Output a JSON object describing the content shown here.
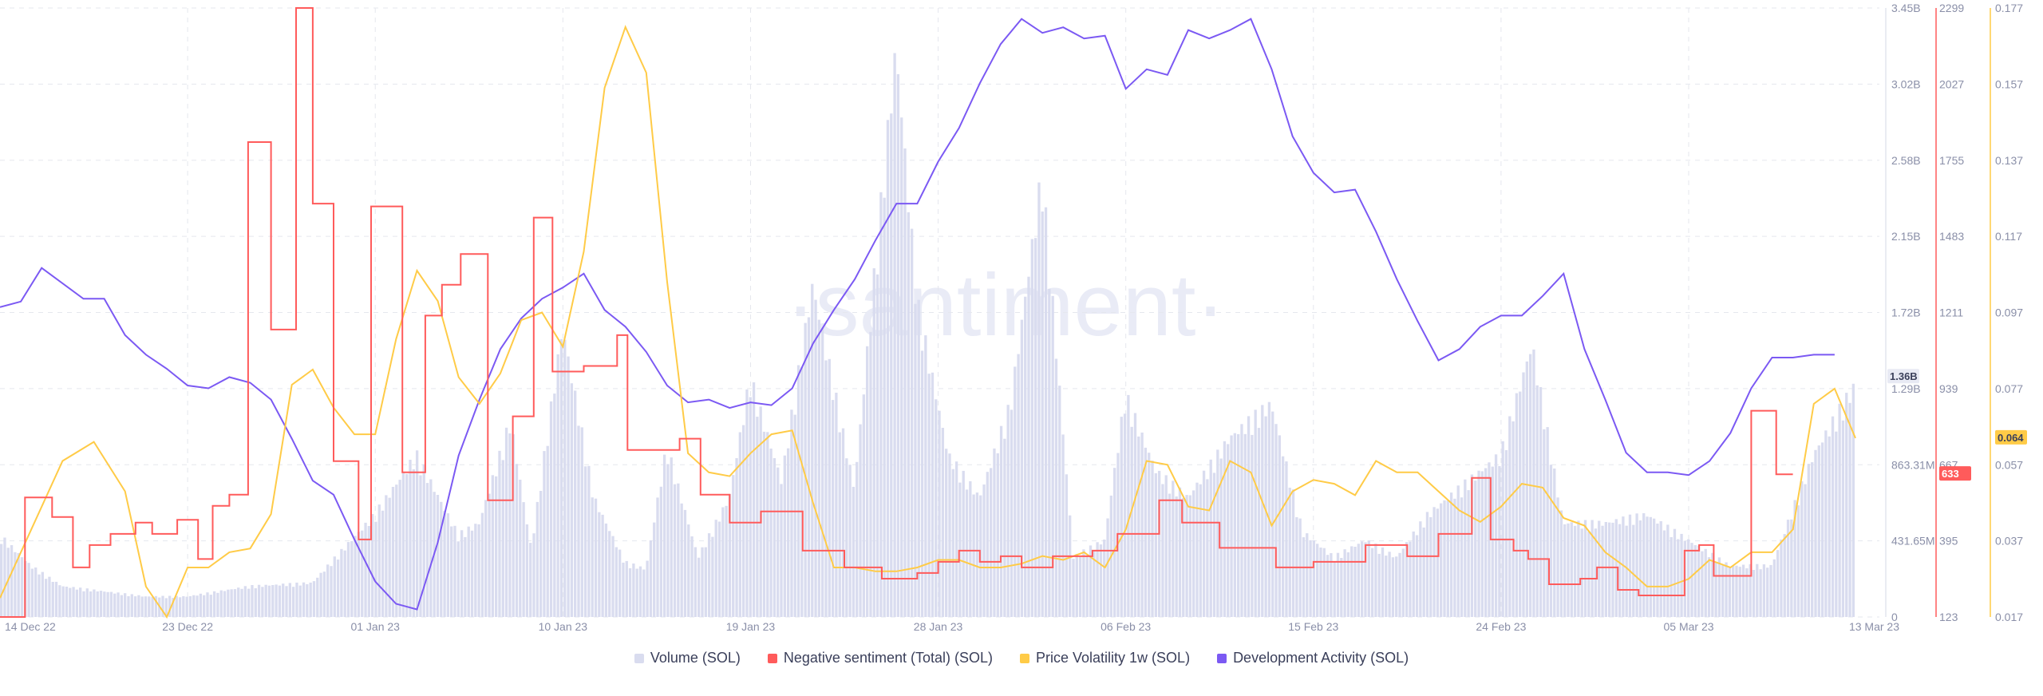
{
  "watermark": "·santiment·",
  "colors": {
    "volume": "#d9dcef",
    "negative": "#ff5b5b",
    "volatility": "#ffcb47",
    "dev": "#7b59f3",
    "grid": "#e5e7ee",
    "text": "#8a8fa8"
  },
  "chart_data": {
    "type": "area",
    "x_range": [
      "2022-12-14",
      "2023-03-13"
    ],
    "x_ticks": [
      "14 Dec 22",
      "23 Dec 22",
      "01 Jan 23",
      "10 Jan 23",
      "19 Jan 23",
      "28 Jan 23",
      "06 Feb 23",
      "15 Feb 23",
      "24 Feb 23",
      "05 Mar 23",
      "13 Mar 23"
    ],
    "axes": {
      "volume": {
        "ticks": [
          "3.45B",
          "3.02B",
          "2.58B",
          "2.15B",
          "1.72B",
          "1.29B",
          "863.31M",
          "431.65M",
          "0"
        ],
        "range": [
          0,
          3.45
        ],
        "unit": "B"
      },
      "negative": {
        "ticks": [
          "2299",
          "2027",
          "1755",
          "1483",
          "1211",
          "939",
          "667",
          "395",
          "123"
        ],
        "range": [
          123,
          2299
        ]
      },
      "volatility": {
        "ticks": [
          "0.177",
          "0.157",
          "0.137",
          "0.117",
          "0.097",
          "0.077",
          "0.057",
          "0.037",
          "0.017"
        ],
        "range": [
          0.017,
          0.177
        ]
      }
    },
    "current_labels": {
      "volume": "1.36B",
      "negative": "633",
      "volatility": "0.064"
    },
    "current_values": {
      "volume": 1.36,
      "negative": 633,
      "volatility": 0.064
    },
    "series": [
      {
        "name": "Volume (SOL)",
        "axis": "volume",
        "kind": "bars",
        "x": [
          0,
          1.5,
          3,
          5,
          7,
          9,
          12,
          15,
          18,
          20,
          22,
          23,
          24.5,
          25.5,
          27,
          28.5,
          30,
          31,
          32,
          33.5,
          35,
          36,
          37.5,
          39,
          41,
          43,
          44,
          45.5,
          47,
          48.5,
          50,
          51.5,
          53,
          54,
          55.5,
          57,
          59,
          61,
          62.5,
          64,
          65.5,
          67,
          68.5,
          70,
          72,
          73.5,
          75,
          77,
          79,
          81,
          83,
          85,
          87,
          89
        ],
        "values": [
          0.48,
          0.3,
          0.18,
          0.15,
          0.12,
          0.12,
          0.18,
          0.2,
          0.6,
          0.95,
          0.48,
          0.55,
          1.15,
          0.4,
          1.7,
          0.7,
          0.32,
          0.28,
          1.0,
          0.35,
          0.7,
          1.4,
          0.8,
          1.95,
          0.75,
          3.35,
          1.85,
          0.95,
          0.7,
          1.25,
          2.6,
          0.35,
          0.45,
          1.3,
          0.85,
          0.7,
          1.05,
          1.25,
          0.5,
          0.35,
          0.45,
          0.35,
          0.6,
          0.75,
          0.95,
          1.6,
          0.55,
          0.55,
          0.6,
          0.45,
          0.3,
          0.3,
          0.95,
          1.36
        ]
      },
      {
        "name": "Negative sentiment (Total) (SOL)",
        "axis": "negative",
        "kind": "step",
        "x": [
          0,
          1.2,
          2.5,
          3.5,
          4.3,
          5.3,
          6.5,
          7.3,
          8.5,
          9.5,
          10.2,
          11,
          11.9,
          13,
          14.2,
          15,
          16,
          17.2,
          17.8,
          19.3,
          20.4,
          21.2,
          22.1,
          23.4,
          24.6,
          25.6,
          26.5,
          28,
          29.6,
          30.1,
          32.6,
          33.6,
          35,
          36.5,
          38.5,
          40.5,
          42.3,
          44,
          45,
          46,
          47,
          48,
          49,
          50.5,
          52.4,
          53.6,
          55.6,
          56.7,
          58.5,
          61.2,
          63,
          65.5,
          67.5,
          69,
          70.6,
          71.5,
          72.6,
          73.3,
          74.3,
          75.8,
          76.6,
          77.6,
          78.6,
          80.8,
          81.5,
          82.2,
          84,
          85.2,
          86
        ],
        "values": [
          123,
          550,
          480,
          300,
          380,
          420,
          460,
          420,
          470,
          330,
          520,
          560,
          1820,
          1150,
          2299,
          1600,
          680,
          400,
          1590,
          640,
          1200,
          1310,
          1420,
          540,
          840,
          1550,
          1000,
          1020,
          1130,
          720,
          760,
          560,
          460,
          500,
          360,
          300,
          260,
          280,
          320,
          360,
          320,
          340,
          300,
          340,
          360,
          420,
          540,
          460,
          370,
          300,
          320,
          380,
          340,
          420,
          620,
          400,
          360,
          330,
          240,
          260,
          300,
          220,
          200,
          360,
          380,
          270,
          860,
          633,
          633
        ],
        "note_offsets": "x values are day offsets from 14 Dec 22"
      },
      {
        "name": "Price Volatility 1w (SOL)",
        "axis": "volatility",
        "kind": "line",
        "x": [
          0,
          1.5,
          3,
          4.5,
          6,
          7,
          8,
          9,
          9.5,
          10,
          11,
          12,
          13,
          14,
          15,
          16,
          17,
          18,
          19,
          20,
          21,
          22,
          23,
          24,
          25,
          26,
          27,
          28,
          29,
          30,
          31,
          32,
          33,
          34,
          35,
          36,
          37,
          38,
          39,
          40,
          41,
          42,
          43,
          44,
          45,
          46,
          47,
          48,
          49,
          50,
          51,
          52,
          53,
          54,
          55,
          56,
          57,
          58,
          59,
          60,
          61,
          62,
          63,
          64,
          65,
          66,
          67,
          68,
          69,
          70,
          71,
          72,
          73,
          74,
          75,
          76,
          77,
          78,
          79,
          80,
          81,
          82,
          83,
          84,
          85,
          86,
          87,
          88,
          89
        ],
        "values": [
          0.022,
          0.04,
          0.058,
          0.063,
          0.05,
          0.025,
          0.017,
          0.03,
          0.03,
          0.03,
          0.034,
          0.035,
          0.044,
          0.078,
          0.082,
          0.072,
          0.065,
          0.065,
          0.09,
          0.108,
          0.1,
          0.08,
          0.073,
          0.081,
          0.095,
          0.097,
          0.088,
          0.113,
          0.156,
          0.172,
          0.16,
          0.105,
          0.06,
          0.055,
          0.054,
          0.06,
          0.065,
          0.066,
          0.047,
          0.03,
          0.03,
          0.029,
          0.029,
          0.03,
          0.032,
          0.032,
          0.03,
          0.03,
          0.031,
          0.033,
          0.032,
          0.034,
          0.03,
          0.04,
          0.058,
          0.057,
          0.046,
          0.045,
          0.058,
          0.055,
          0.041,
          0.05,
          0.053,
          0.052,
          0.049,
          0.058,
          0.055,
          0.055,
          0.05,
          0.045,
          0.042,
          0.046,
          0.052,
          0.051,
          0.043,
          0.041,
          0.034,
          0.03,
          0.025,
          0.025,
          0.027,
          0.032,
          0.03,
          0.034,
          0.034,
          0.04,
          0.073,
          0.077,
          0.064
        ]
      },
      {
        "name": "Development Activity (SOL)",
        "axis": "negative",
        "kind": "line",
        "x": [
          0,
          1,
          2,
          4,
          5,
          6,
          7,
          8,
          9,
          10,
          11,
          12,
          13,
          14,
          15,
          16,
          17,
          18,
          19,
          20,
          21,
          22,
          23,
          24,
          25,
          26,
          27,
          28,
          29,
          30,
          31,
          32,
          33,
          34,
          35,
          36,
          37,
          38,
          39,
          40,
          41,
          42,
          43,
          44,
          45,
          46,
          47,
          48,
          49,
          50,
          51,
          52,
          53,
          54,
          55,
          56,
          57,
          58,
          59,
          60,
          61,
          62,
          63,
          64,
          65,
          66,
          67,
          68,
          69,
          70,
          71,
          72,
          73,
          74,
          75,
          76,
          77,
          78,
          79,
          80,
          81,
          82,
          83,
          84,
          85,
          86,
          87,
          88
        ],
        "values": [
          1230,
          1250,
          1370,
          1260,
          1260,
          1130,
          1060,
          1010,
          950,
          940,
          980,
          960,
          900,
          760,
          610,
          560,
          400,
          250,
          170,
          150,
          390,
          700,
          900,
          1080,
          1190,
          1260,
          1300,
          1350,
          1220,
          1160,
          1070,
          950,
          890,
          900,
          870,
          890,
          880,
          940,
          1100,
          1220,
          1330,
          1470,
          1600,
          1600,
          1750,
          1870,
          2030,
          2170,
          2260,
          2210,
          2230,
          2190,
          2200,
          2010,
          2080,
          2060,
          2220,
          2190,
          2220,
          2260,
          2080,
          1840,
          1710,
          1640,
          1650,
          1500,
          1330,
          1180,
          1040,
          1080,
          1160,
          1200,
          1200,
          1270,
          1350,
          1080,
          900,
          710,
          640,
          640,
          630,
          680,
          780,
          940,
          1050,
          1050,
          1060,
          1060
        ]
      }
    ],
    "legend": [
      "Volume (SOL)",
      "Negative sentiment (Total) (SOL)",
      "Price Volatility 1w (SOL)",
      "Development Activity (SOL)"
    ],
    "grid": true,
    "legend_position": "bottom-center"
  }
}
